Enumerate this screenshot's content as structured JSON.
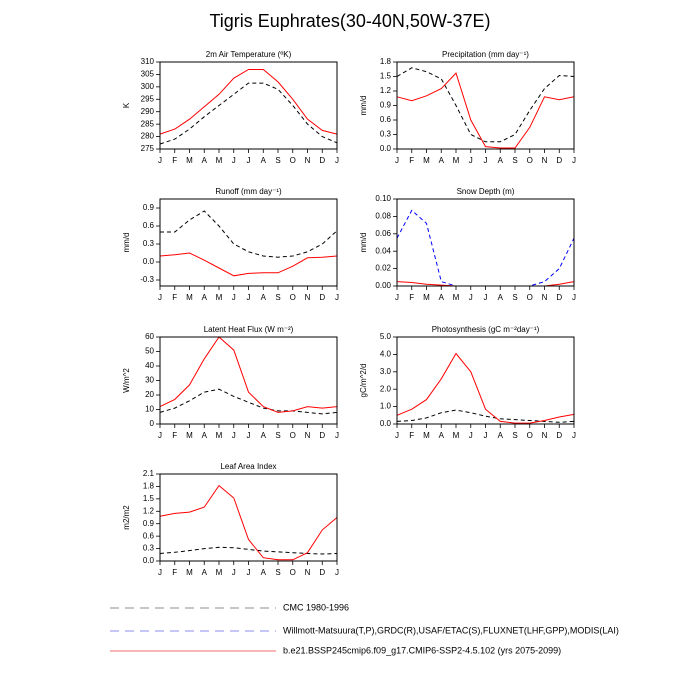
{
  "title": "Tigris Euphrates(30-40N,50W-37E)",
  "legend": [
    {
      "name": "CMC 1980-1996",
      "color": "#8c8c8c",
      "dashed": true
    },
    {
      "name": "Willmott-Matsuura(T,P),GRDC(R),USAF/ETAC(S),FLUXNET(LHF,GPP),MODIS(LAI)",
      "color": "#8c8cf0",
      "dashed": true
    },
    {
      "name": "b.e21.BSSP245cmip6.f09_g17.CMIP6-SSP2-4.5.102 (yrs 2075-2099)",
      "color": "#f06e6e",
      "dashed": false
    }
  ],
  "chart_data": [
    {
      "type": "line",
      "title": "2m Air Temperature (ºK)",
      "ylabel": "K",
      "categories": [
        "J",
        "F",
        "M",
        "A",
        "M",
        "J",
        "J",
        "A",
        "S",
        "O",
        "N",
        "D",
        "J"
      ],
      "ylim": [
        275,
        310
      ],
      "yticks": [
        275,
        280,
        285,
        290,
        295,
        300,
        305,
        310
      ],
      "series": [
        {
          "color": "#000000",
          "dashed": true,
          "values": [
            277,
            279,
            283,
            288,
            292.5,
            297,
            301.5,
            301.5,
            299,
            292.5,
            285,
            280,
            277.5
          ]
        },
        {
          "color": "#ff0000",
          "dashed": false,
          "values": [
            281,
            283,
            287,
            292,
            297,
            303.5,
            307,
            307,
            302,
            295,
            287,
            282.5,
            281
          ]
        }
      ]
    },
    {
      "type": "line",
      "title": "Precipitation (mm day⁻¹)",
      "ylabel": "mm/d",
      "categories": [
        "J",
        "F",
        "M",
        "A",
        "M",
        "J",
        "J",
        "A",
        "S",
        "O",
        "N",
        "D",
        "J"
      ],
      "ylim": [
        0,
        1.8
      ],
      "yticks": [
        {
          "value": 0,
          "label": "0.0"
        },
        0.3,
        0.6,
        0.9,
        1.2,
        1.5,
        1.8
      ],
      "series": [
        {
          "color": "#000000",
          "dashed": true,
          "values": [
            1.5,
            1.68,
            1.6,
            1.45,
            0.9,
            0.3,
            0.15,
            0.15,
            0.3,
            0.8,
            1.25,
            1.52,
            1.5
          ]
        },
        {
          "color": "#ff0000",
          "dashed": false,
          "values": [
            1.08,
            1.0,
            1.1,
            1.25,
            1.57,
            0.6,
            0.05,
            0.02,
            0.02,
            0.45,
            1.08,
            1.02,
            1.08
          ]
        }
      ]
    },
    {
      "type": "line",
      "title": "Runoff (mm day⁻¹)",
      "ylabel": "mm/d",
      "categories": [
        "J",
        "F",
        "M",
        "A",
        "M",
        "J",
        "J",
        "A",
        "S",
        "O",
        "N",
        "D",
        "J"
      ],
      "ylim": [
        -0.4,
        1.05
      ],
      "yticks": [
        -0.3,
        {
          "value": 0,
          "label": "0.0"
        },
        0.3,
        0.6,
        0.9
      ],
      "series": [
        {
          "color": "#000000",
          "dashed": true,
          "values": [
            0.5,
            0.5,
            0.7,
            0.85,
            0.6,
            0.3,
            0.17,
            0.1,
            0.08,
            0.1,
            0.17,
            0.3,
            0.52
          ]
        },
        {
          "color": "#ff0000",
          "dashed": false,
          "values": [
            0.1,
            0.12,
            0.15,
            0.03,
            -0.1,
            -0.23,
            -0.19,
            -0.18,
            -0.18,
            -0.07,
            0.07,
            0.08,
            0.1
          ]
        }
      ]
    },
    {
      "type": "line",
      "title": "Snow Depth (m)",
      "ylabel": "mm/d",
      "categories": [
        "J",
        "F",
        "M",
        "A",
        "M",
        "J",
        "J",
        "A",
        "S",
        "O",
        "N",
        "D",
        "J"
      ],
      "ylim": [
        0,
        0.1
      ],
      "yticks": [
        {
          "value": 0,
          "label": "0.00"
        },
        0.02,
        0.04,
        0.06,
        0.08,
        {
          "value": 0.1,
          "label": "0.10"
        }
      ],
      "series": [
        {
          "color": "#0000ff",
          "dashed": true,
          "values": [
            0.055,
            0.087,
            0.072,
            0.005,
            0,
            0,
            0,
            0,
            0,
            0,
            0.005,
            0.02,
            0.055
          ]
        },
        {
          "color": "#ff0000",
          "dashed": false,
          "values": [
            0.005,
            0.004,
            0.002,
            0.001,
            0,
            0,
            0,
            0,
            0,
            0,
            0,
            0.002,
            0.005
          ]
        }
      ]
    },
    {
      "type": "line",
      "title": "Latent Heat Flux (W m⁻²)",
      "ylabel": "W/m^2",
      "categories": [
        "J",
        "F",
        "M",
        "A",
        "M",
        "J",
        "J",
        "A",
        "S",
        "O",
        "N",
        "D",
        "J"
      ],
      "ylim": [
        0,
        60
      ],
      "yticks": [
        0,
        10,
        20,
        30,
        40,
        50,
        60
      ],
      "series": [
        {
          "color": "#000000",
          "dashed": true,
          "values": [
            8,
            11,
            16,
            22,
            24,
            19,
            15,
            11,
            9,
            9,
            8,
            7,
            8
          ]
        },
        {
          "color": "#ff0000",
          "dashed": false,
          "values": [
            12,
            17,
            27,
            45,
            60,
            51,
            22,
            12,
            8,
            9,
            12,
            11,
            12
          ]
        }
      ]
    },
    {
      "type": "line",
      "title": "Photosynthesis (gC m⁻²day⁻¹)",
      "ylabel": "gC/m^2/d",
      "categories": [
        "J",
        "F",
        "M",
        "A",
        "M",
        "J",
        "J",
        "A",
        "S",
        "O",
        "N",
        "D",
        "J"
      ],
      "ylim": [
        0,
        5
      ],
      "yticks": [
        {
          "value": 0,
          "label": "0.0"
        },
        {
          "value": 1,
          "label": "1.0"
        },
        {
          "value": 2,
          "label": "2.0"
        },
        {
          "value": 3,
          "label": "3.0"
        },
        {
          "value": 4,
          "label": "4.0"
        },
        {
          "value": 5,
          "label": "5.0"
        }
      ],
      "series": [
        {
          "color": "#000000",
          "dashed": true,
          "values": [
            0.15,
            0.2,
            0.35,
            0.65,
            0.8,
            0.65,
            0.45,
            0.3,
            0.25,
            0.2,
            0.15,
            0.1,
            0.15
          ]
        },
        {
          "color": "#ff0000",
          "dashed": false,
          "values": [
            0.5,
            0.85,
            1.4,
            2.6,
            4.05,
            3.0,
            0.85,
            0.15,
            0.05,
            0.05,
            0.2,
            0.4,
            0.55
          ]
        }
      ]
    },
    {
      "type": "line",
      "title": "Leaf Area Index",
      "ylabel": "m2/m2",
      "categories": [
        "J",
        "F",
        "M",
        "A",
        "M",
        "J",
        "J",
        "A",
        "S",
        "O",
        "N",
        "D",
        "J"
      ],
      "ylim": [
        0,
        2.1
      ],
      "yticks": [
        {
          "value": 0,
          "label": "0.0"
        },
        0.3,
        0.6,
        0.9,
        1.2,
        1.5,
        1.8,
        2.1
      ],
      "series": [
        {
          "color": "#000000",
          "dashed": true,
          "values": [
            0.18,
            0.21,
            0.25,
            0.3,
            0.33,
            0.32,
            0.28,
            0.24,
            0.22,
            0.2,
            0.18,
            0.17,
            0.18
          ]
        },
        {
          "color": "#ff0000",
          "dashed": false,
          "values": [
            1.08,
            1.15,
            1.18,
            1.3,
            1.82,
            1.52,
            0.52,
            0.08,
            0.03,
            0.03,
            0.2,
            0.75,
            1.05
          ]
        }
      ]
    }
  ]
}
